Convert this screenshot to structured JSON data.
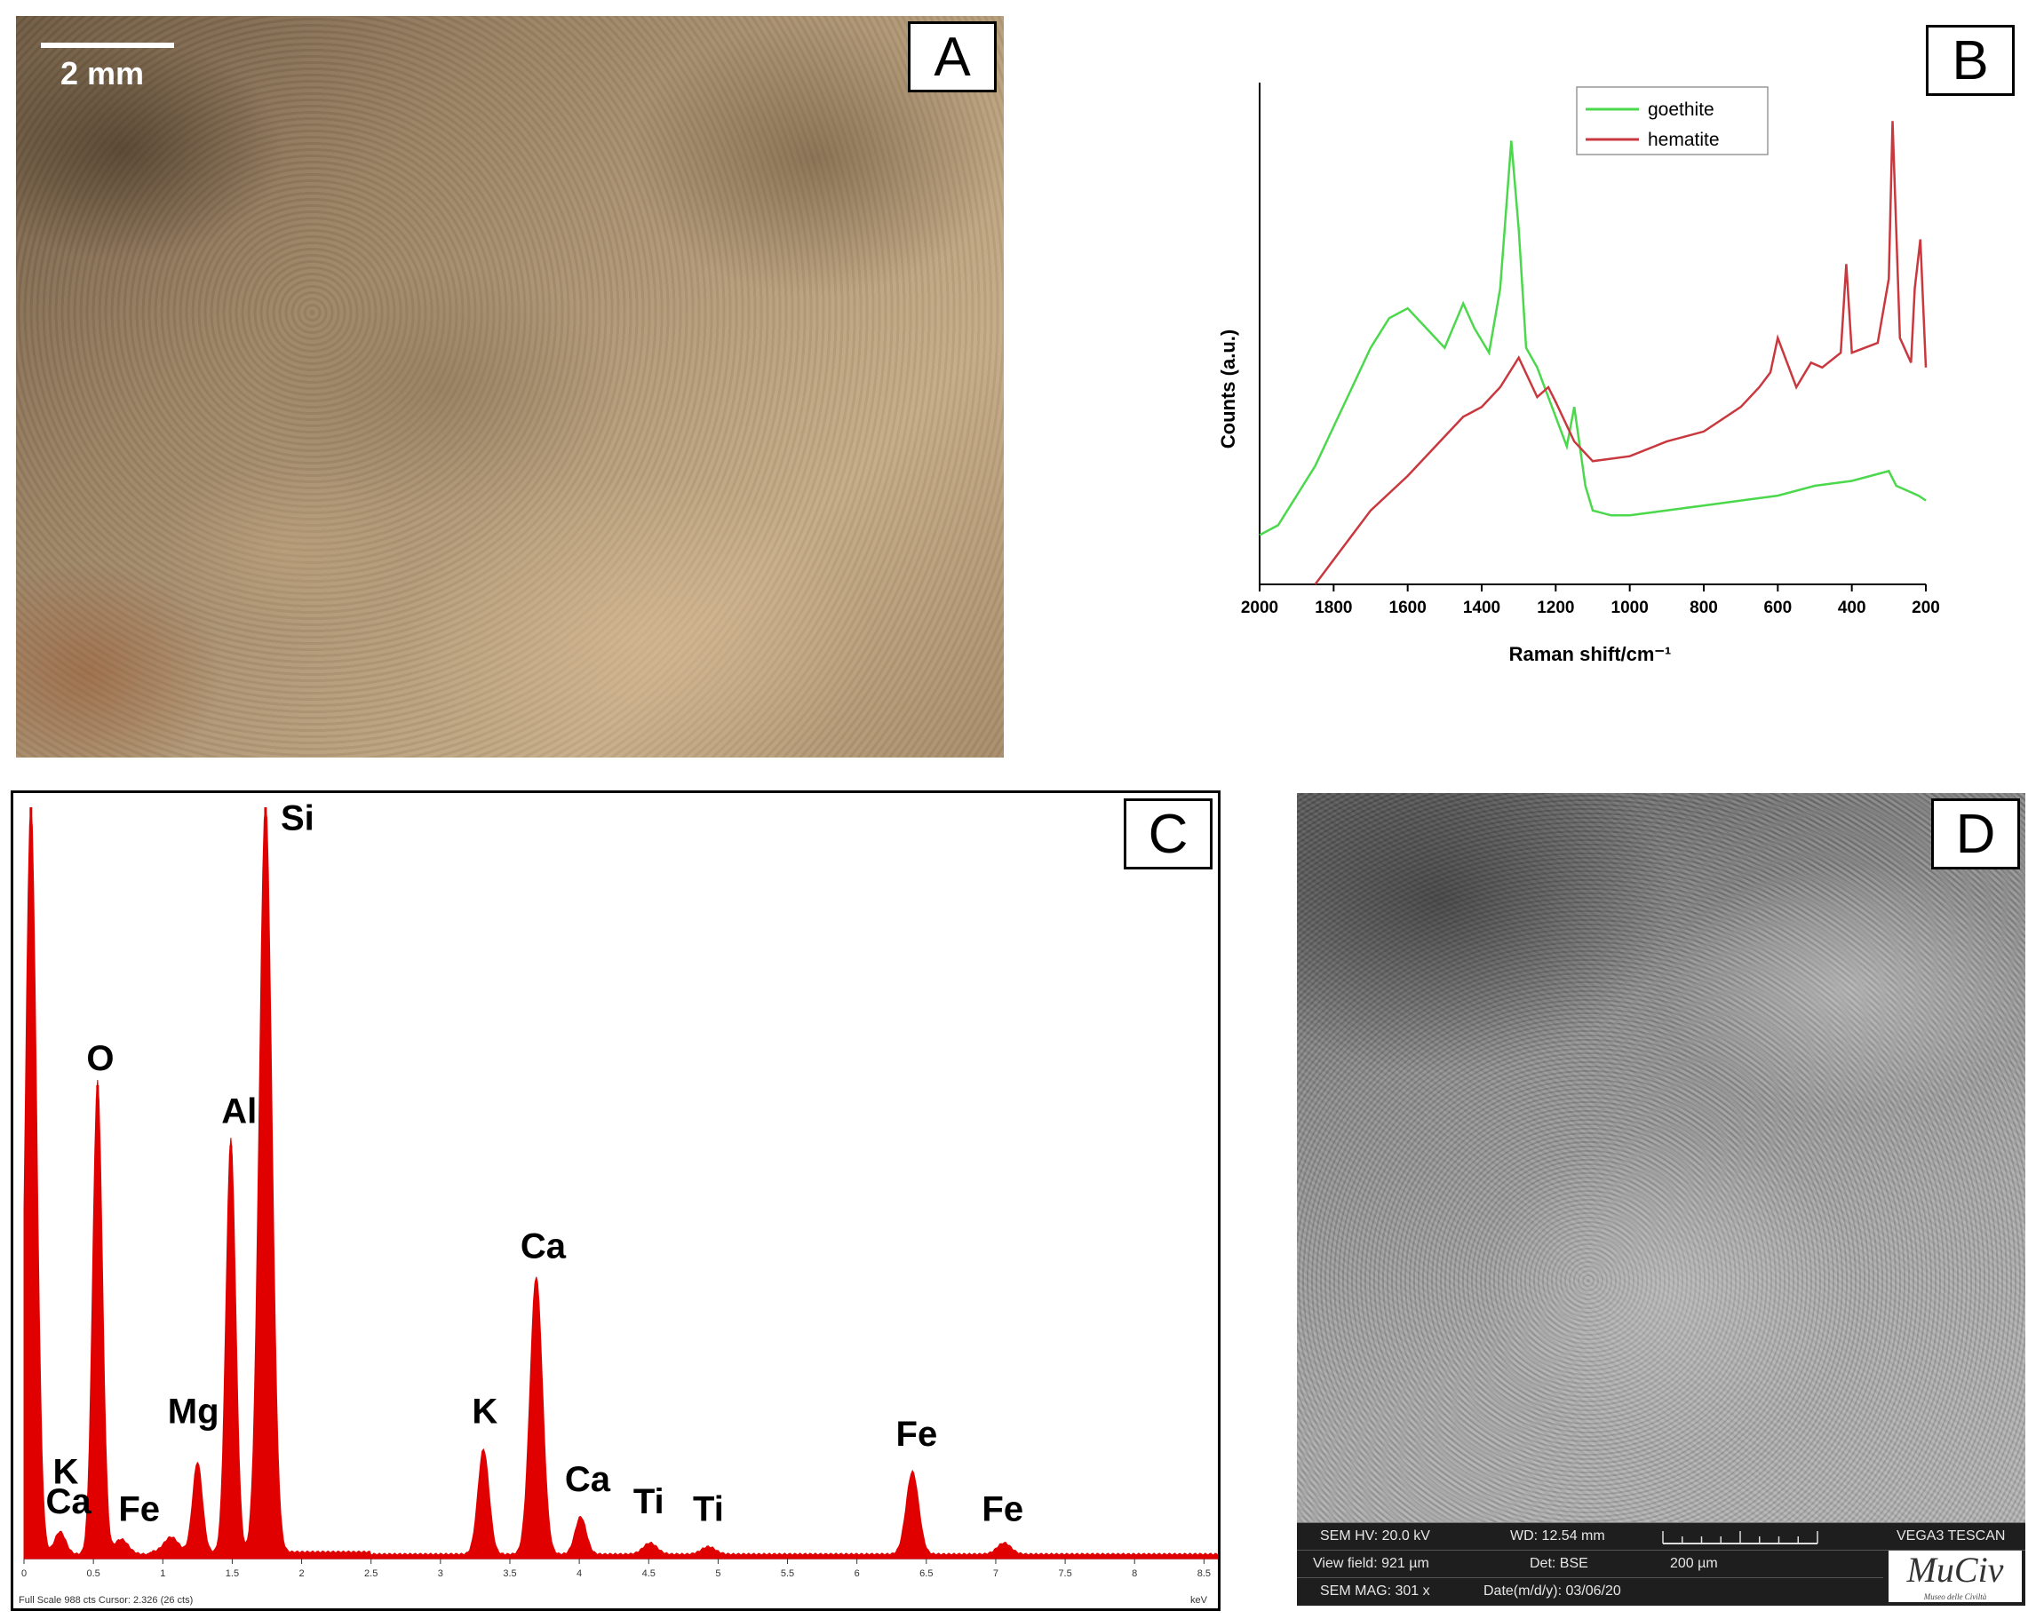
{
  "panels": {
    "a": {
      "letter": "A",
      "scale_label": "2 mm"
    },
    "b": {
      "letter": "B"
    },
    "c": {
      "letter": "C"
    },
    "d": {
      "letter": "D"
    }
  },
  "sem": {
    "hv": "SEM HV: 20.0 kV",
    "wd": "WD: 12.54 mm",
    "instrument": "VEGA3 TESCAN",
    "view_field": "View field: 921 µm",
    "det": "Det: BSE",
    "scale": "200 µm",
    "mag": "SEM MAG: 301 x",
    "date": "Date(m/d/y): 03/06/20",
    "logo": "MuCiv",
    "logo_sub": "Museo delle Civiltà"
  },
  "colors": {
    "goethite": "#4cd84c",
    "hematite": "#c8383e",
    "eds": "#e00000"
  },
  "chart_data": [
    {
      "type": "line",
      "panel": "B",
      "xlabel": "Raman shift/cm⁻¹",
      "ylabel": "Counts (a.u.)",
      "xlim": [
        2000,
        200
      ],
      "ylim": [
        0,
        100
      ],
      "x_reversed": true,
      "xticks": [
        2000,
        1800,
        1600,
        1400,
        1200,
        1000,
        800,
        600,
        400,
        200
      ],
      "legend": "top-center",
      "series": [
        {
          "name": "goethite",
          "x": [
            2000,
            1950,
            1900,
            1850,
            1800,
            1750,
            1700,
            1650,
            1600,
            1550,
            1500,
            1450,
            1420,
            1380,
            1350,
            1320,
            1300,
            1280,
            1250,
            1200,
            1170,
            1150,
            1120,
            1100,
            1050,
            1000,
            900,
            800,
            700,
            600,
            500,
            400,
            300,
            280,
            250,
            220,
            200
          ],
          "y": [
            10,
            12,
            18,
            24,
            32,
            40,
            48,
            54,
            56,
            52,
            48,
            57,
            52,
            47,
            60,
            90,
            72,
            48,
            44,
            34,
            28,
            36,
            20,
            15,
            14,
            14,
            15,
            16,
            17,
            18,
            20,
            21,
            23,
            20,
            19,
            18,
            17
          ]
        },
        {
          "name": "hematite",
          "x": [
            1850,
            1800,
            1700,
            1600,
            1500,
            1450,
            1400,
            1350,
            1300,
            1250,
            1220,
            1200,
            1150,
            1100,
            1000,
            900,
            800,
            700,
            650,
            620,
            600,
            550,
            510,
            480,
            430,
            415,
            400,
            330,
            300,
            290,
            270,
            240,
            230,
            215,
            200
          ],
          "y": [
            0,
            5,
            15,
            22,
            30,
            34,
            36,
            40,
            46,
            38,
            40,
            37,
            29,
            25,
            26,
            29,
            31,
            36,
            40,
            43,
            50,
            40,
            45,
            44,
            47,
            65,
            47,
            49,
            62,
            94,
            50,
            45,
            60,
            70,
            44
          ]
        }
      ]
    },
    {
      "type": "line",
      "panel": "C",
      "xlabel": "keV",
      "xlim": [
        0,
        8.6
      ],
      "ylim": [
        0,
        100
      ],
      "xticks": [
        "0",
        "0.5",
        "1",
        "1.5",
        "2",
        "2.5",
        "3",
        "3.5",
        "4",
        "4.5",
        "5",
        "5.5",
        "6",
        "6.5",
        "7",
        "7.5",
        "8",
        "8.5"
      ],
      "footer": "Full Scale 988 cts Cursor: 2.326 (26 cts)",
      "peaks": [
        {
          "x": 0.05,
          "y": 100,
          "w": 0.04
        },
        {
          "x": 0.26,
          "y": 3.0,
          "w": 0.04
        },
        {
          "x": 0.53,
          "y": 63,
          "w": 0.035
        },
        {
          "x": 0.7,
          "y": 2.0,
          "w": 0.05
        },
        {
          "x": 1.06,
          "y": 2.0,
          "w": 0.05
        },
        {
          "x": 1.25,
          "y": 12,
          "w": 0.035
        },
        {
          "x": 1.49,
          "y": 55,
          "w": 0.035
        },
        {
          "x": 1.74,
          "y": 100,
          "w": 0.045
        },
        {
          "x": 3.31,
          "y": 14,
          "w": 0.04
        },
        {
          "x": 3.69,
          "y": 37,
          "w": 0.045
        },
        {
          "x": 4.01,
          "y": 5.0,
          "w": 0.04
        },
        {
          "x": 4.51,
          "y": 1.5,
          "w": 0.05
        },
        {
          "x": 4.93,
          "y": 1.0,
          "w": 0.05
        },
        {
          "x": 6.4,
          "y": 11,
          "w": 0.045
        },
        {
          "x": 7.06,
          "y": 1.5,
          "w": 0.05
        }
      ],
      "annotations": [
        {
          "text": "Si",
          "x": 1.97,
          "y": 97
        },
        {
          "text": "O",
          "x": 0.55,
          "y": 65
        },
        {
          "text": "Al",
          "x": 1.55,
          "y": 58
        },
        {
          "text": "Mg",
          "x": 1.22,
          "y": 18
        },
        {
          "text": "K",
          "x": 0.3,
          "y": 10
        },
        {
          "text": "Ca",
          "x": 0.32,
          "y": 6
        },
        {
          "text": "Fe",
          "x": 0.83,
          "y": 5
        },
        {
          "text": "Ca",
          "x": 3.74,
          "y": 40
        },
        {
          "text": "K",
          "x": 3.32,
          "y": 18
        },
        {
          "text": "Ca",
          "x": 4.06,
          "y": 9
        },
        {
          "text": "Ti",
          "x": 4.5,
          "y": 6
        },
        {
          "text": "Ti",
          "x": 4.93,
          "y": 5
        },
        {
          "text": "Fe",
          "x": 6.43,
          "y": 15
        },
        {
          "text": "Fe",
          "x": 7.05,
          "y": 5
        }
      ]
    }
  ]
}
